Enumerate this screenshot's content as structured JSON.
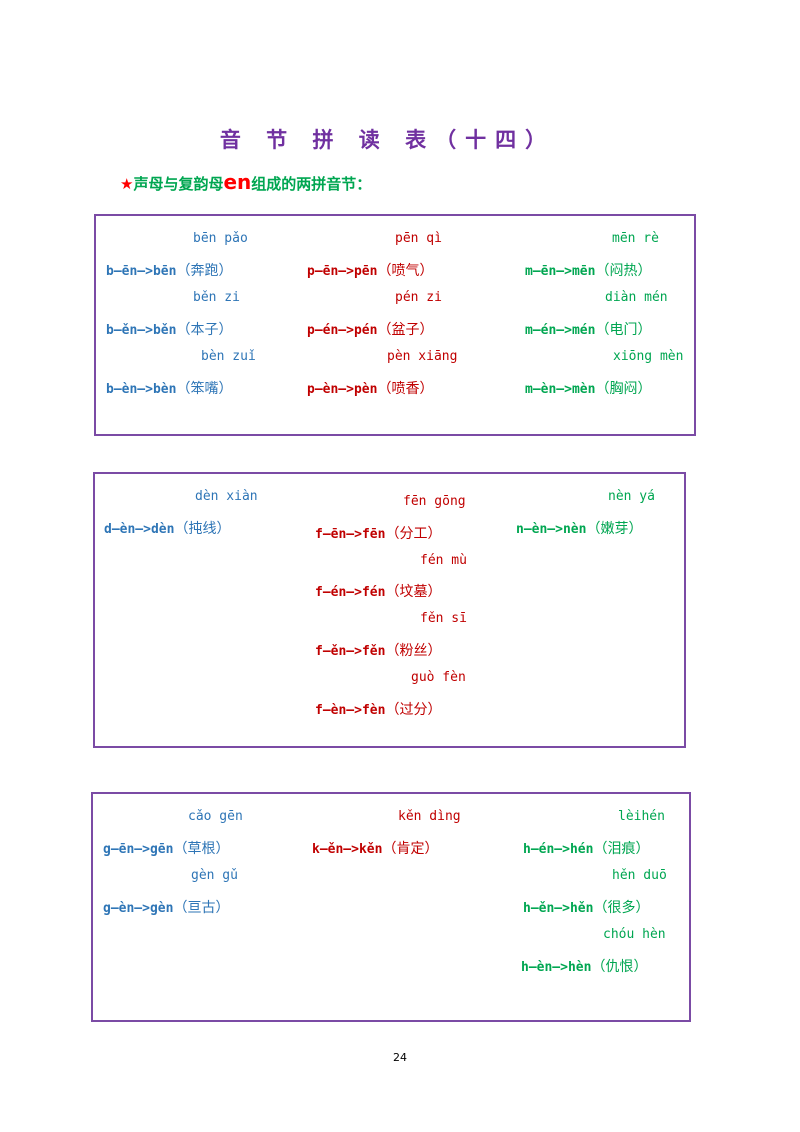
{
  "title": "音 节 拼 读 表（十四）",
  "subtitle": {
    "star": "★",
    "prefix": "声母与复韵母",
    "vowel": "en",
    "suffix": "组成的两拼音节："
  },
  "colors": {
    "title": "#7030a0",
    "col1": "#2e75b6",
    "col2": "#c00000",
    "col3": "#00a651",
    "border": "#7b4ba5"
  },
  "box1": {
    "items": [
      {
        "py": "bēn pǎo",
        "formula": "b—ēn—>bēn",
        "word": "（奔跑）"
      },
      {
        "py": "pēn qì",
        "formula": "p—ēn—>pēn",
        "word": "（喷气）"
      },
      {
        "py": "mēn rè",
        "formula": "m—ēn—>mēn",
        "word": "（闷热）"
      },
      {
        "py": "běn zi",
        "formula": "b—ěn—>běn",
        "word": "（本子）"
      },
      {
        "py": "pén zi",
        "formula": "p—én—>pén",
        "word": "（盆子）"
      },
      {
        "py": "diàn mén",
        "formula": "m—én—>mén",
        "word": "（电门）"
      },
      {
        "py": "bèn zuǐ",
        "formula": "b—èn—>bèn",
        "word": "（笨嘴）"
      },
      {
        "py": "pèn xiāng",
        "formula": "p—èn—>pèn",
        "word": "（喷香）"
      },
      {
        "py": "xiōng mèn",
        "formula": "m—èn—>mèn",
        "word": "（胸闷）"
      }
    ]
  },
  "box2": {
    "items": [
      {
        "py": "dèn xiàn",
        "formula": "d—èn—>dèn",
        "word": "（扽线）"
      },
      {
        "py": "fēn gōng",
        "formula": "f—ēn—>fēn",
        "word": "（分工）"
      },
      {
        "py": "nèn yá",
        "formula": "n—èn—>nèn",
        "word": "（嫩芽）"
      },
      {
        "py": "fén mù",
        "formula": "f—én—>fén",
        "word": "（坟墓）"
      },
      {
        "py": "fěn sī",
        "formula": "f—ěn—>fěn",
        "word": "（粉丝）"
      },
      {
        "py": "guò fèn",
        "formula": "f—èn—>fèn",
        "word": "（过分）"
      }
    ]
  },
  "box3": {
    "items": [
      {
        "py": "cǎo gēn",
        "formula": "g—ēn—>gēn",
        "word": "（草根）"
      },
      {
        "py": "kěn dìng",
        "formula": "k—ěn—>kěn",
        "word": "（肯定）"
      },
      {
        "py": "lèihén",
        "formula": "h—én—>hén",
        "word": "（泪痕）"
      },
      {
        "py": "gèn gǔ",
        "formula": "g—èn—>gèn",
        "word": "（亘古）"
      },
      {
        "py": "hěn duō",
        "formula": "h—ěn—>hěn",
        "word": "（很多）"
      },
      {
        "py": "chóu hèn",
        "formula": "h—èn—>hèn",
        "word": "（仇恨）"
      }
    ]
  },
  "page_number": "24"
}
